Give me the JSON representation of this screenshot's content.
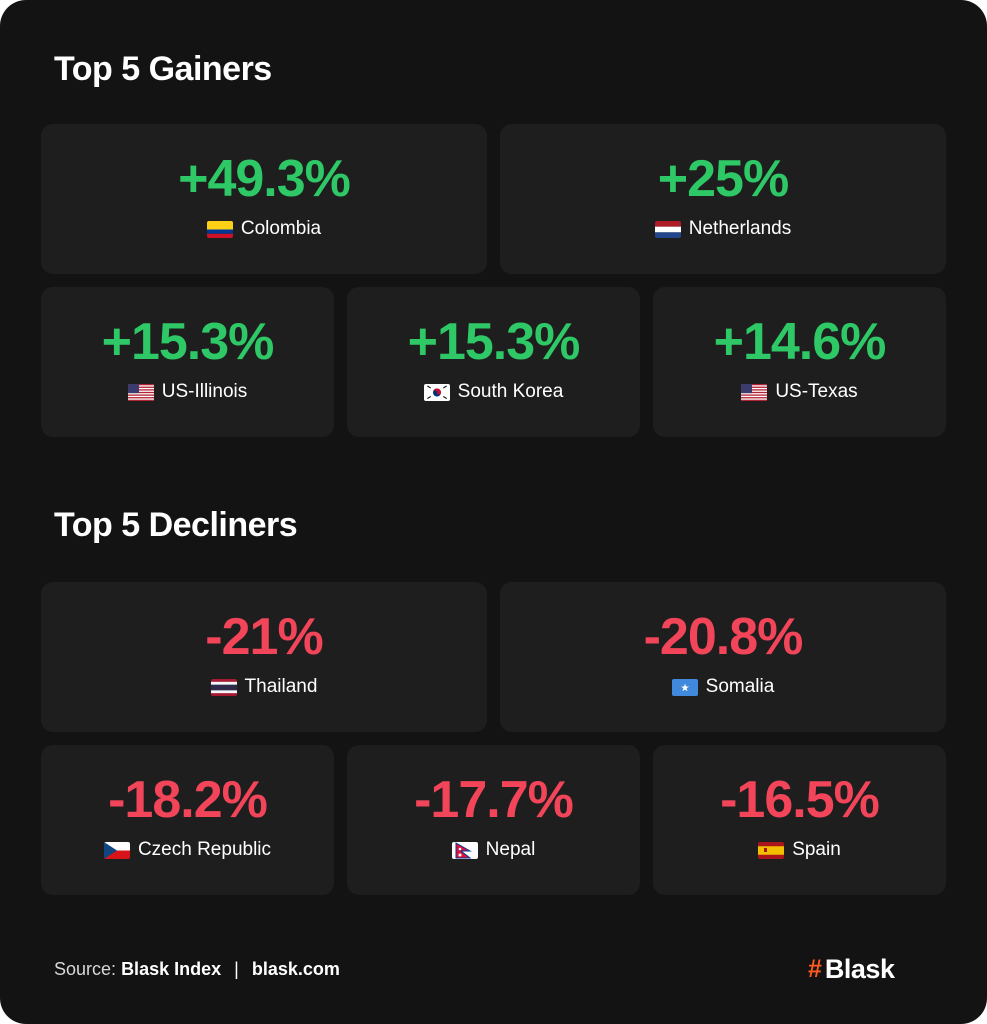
{
  "gainers": {
    "title": "Top 5 Gainers",
    "items": [
      {
        "value": "+49.3%",
        "country": "Colombia",
        "flag": "flag-colombia"
      },
      {
        "value": "+25%",
        "country": "Netherlands",
        "flag": "flag-netherlands"
      },
      {
        "value": "+15.3%",
        "country": "US-Illinois",
        "flag": "flag-usa"
      },
      {
        "value": "+15.3%",
        "country": "South Korea",
        "flag": "flag-south-korea"
      },
      {
        "value": "+14.6%",
        "country": "US-Texas",
        "flag": "flag-usa"
      }
    ]
  },
  "decliners": {
    "title": "Top 5 Decliners",
    "items": [
      {
        "value": "-21%",
        "country": "Thailand",
        "flag": "flag-thailand"
      },
      {
        "value": "-20.8%",
        "country": "Somalia",
        "flag": "flag-somalia"
      },
      {
        "value": "-18.2%",
        "country": "Czech Republic",
        "flag": "flag-czech-republic"
      },
      {
        "value": "-17.7%",
        "country": "Nepal",
        "flag": "flag-nepal"
      },
      {
        "value": "-16.5%",
        "country": "Spain",
        "flag": "flag-spain"
      }
    ]
  },
  "footer": {
    "source_label": "Source:",
    "source_name": "Blask Index",
    "separator": "|",
    "source_url": "blask.com",
    "brand_symbol": "#",
    "brand_name": "Blask"
  },
  "colors": {
    "background": "#131313",
    "tile": "#1e1e1e",
    "positive": "#2ec866",
    "negative": "#f2455a",
    "brand_accent": "#ff5a1f"
  }
}
